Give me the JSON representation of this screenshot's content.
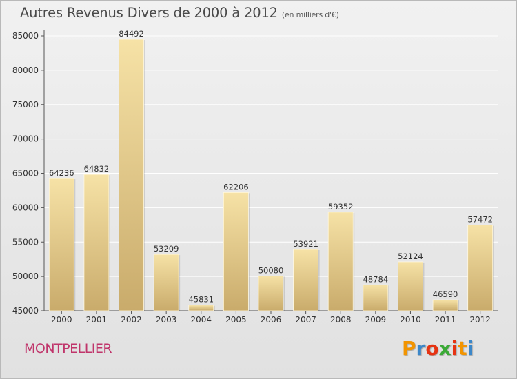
{
  "header": {
    "title": "Autres Revenus Divers de 2000 à 2012",
    "subtitle": "(en milliers d'€)"
  },
  "footer": {
    "city": "MONTPELLIER",
    "logo": "Proxiti",
    "logo_colors": [
      "#f29400",
      "#3b87c9",
      "#e63312",
      "#3aaa35",
      "#e63312",
      "#f29400",
      "#3b87c9"
    ]
  },
  "colors": {
    "bar_light": "#f6e2a6",
    "bar_dark": "#c9ab6b",
    "grid": "#ffffff",
    "city": "#c0356b"
  },
  "chart_data": {
    "type": "bar",
    "title": "Autres Revenus Divers de 2000 à 2012",
    "subtitle": "(en milliers d'€)",
    "categories": [
      "2000",
      "2001",
      "2002",
      "2003",
      "2004",
      "2005",
      "2006",
      "2007",
      "2008",
      "2009",
      "2010",
      "2011",
      "2012"
    ],
    "values": [
      64236,
      64832,
      84492,
      53209,
      45831,
      62206,
      50080,
      53921,
      59352,
      48784,
      52124,
      46590,
      57472
    ],
    "data_labels": [
      "64236",
      "64832",
      "84492",
      "53209",
      "45831",
      "62206",
      "50080",
      "53921",
      "59352",
      "48784",
      "52124",
      "46590",
      "57472"
    ],
    "ylim": [
      45000,
      85000
    ],
    "yticks": [
      45000,
      50000,
      55000,
      60000,
      65000,
      70000,
      75000,
      80000,
      85000
    ],
    "ytick_labels": [
      "45000",
      "50000",
      "55000",
      "60000",
      "65000",
      "70000",
      "75000",
      "80000",
      "85000"
    ],
    "grid": true,
    "legend": "none"
  }
}
